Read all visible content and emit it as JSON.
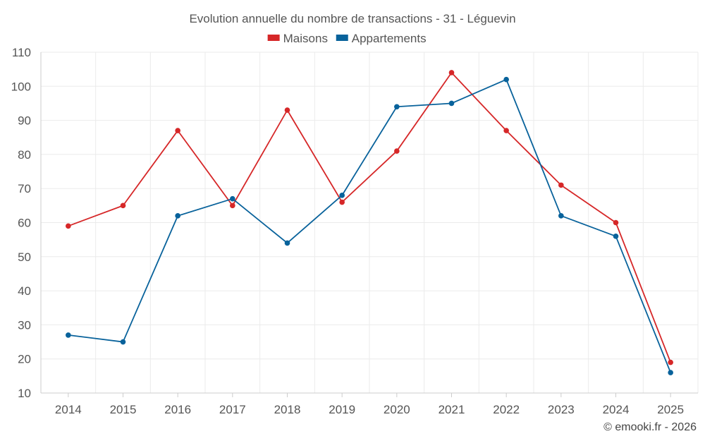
{
  "chart_data": {
    "type": "line",
    "title": "Evolution annuelle du nombre de transactions - 31 - Léguevin",
    "xlabel": "",
    "ylabel": "",
    "categories": [
      "2014",
      "2015",
      "2016",
      "2017",
      "2018",
      "2019",
      "2020",
      "2021",
      "2022",
      "2023",
      "2024",
      "2025"
    ],
    "ylim": [
      10,
      110
    ],
    "yticks": [
      10,
      20,
      30,
      40,
      50,
      60,
      70,
      80,
      90,
      100,
      110
    ],
    "grid": true,
    "legend_position": "top-center",
    "series": [
      {
        "name": "Maisons",
        "color": "#d62728",
        "values": [
          59,
          65,
          87,
          65,
          93,
          66,
          81,
          104,
          87,
          71,
          60,
          19
        ]
      },
      {
        "name": "Appartements",
        "color": "#08629b",
        "values": [
          27,
          25,
          62,
          67,
          54,
          68,
          94,
          95,
          102,
          62,
          56,
          16
        ]
      }
    ]
  },
  "credit": "© emooki.fr - 2026"
}
